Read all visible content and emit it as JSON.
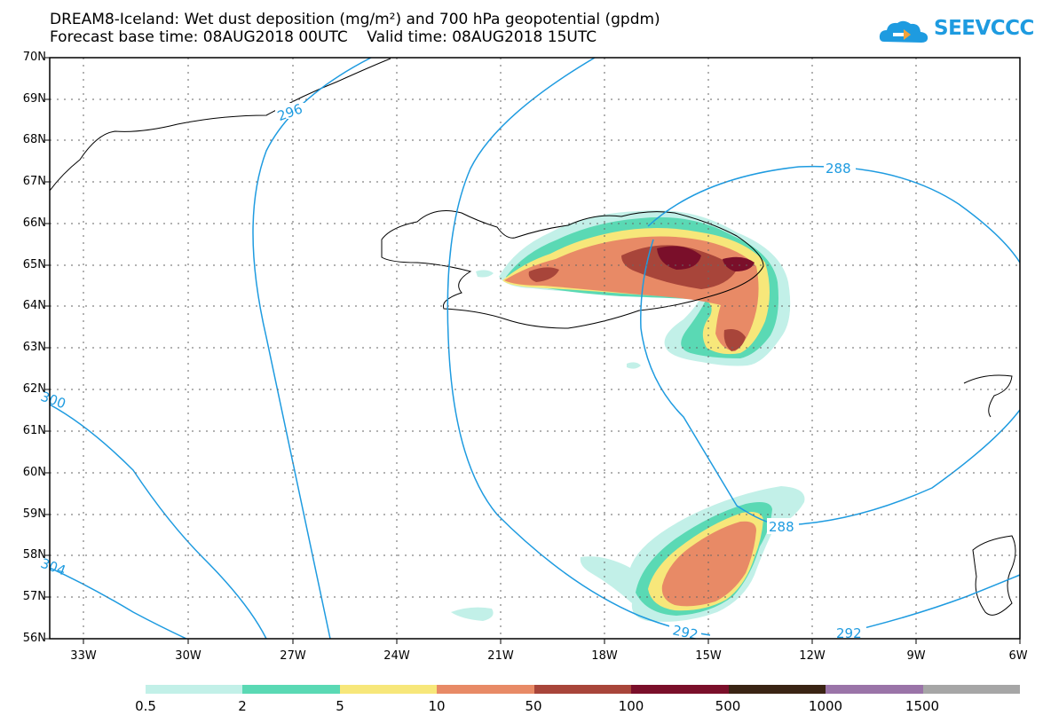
{
  "title": {
    "line1": "DREAM8-Iceland: Wet dust deposition (mg/m²) and 700 hPa geopotential (gpdm)",
    "line2": "Forecast base time: 08AUG2018 00UTC    Valid time: 08AUG2018 15UTC"
  },
  "logo": {
    "text": "SEEVCCC",
    "icon": "cloud-icon",
    "color": "#1e9be0"
  },
  "axes": {
    "lat_labels": [
      "70N",
      "69N",
      "68N",
      "67N",
      "66N",
      "65N",
      "64N",
      "63N",
      "62N",
      "61N",
      "60N",
      "59N",
      "58N",
      "57N",
      "56N"
    ],
    "lon_labels": [
      "33W",
      "30W",
      "27W",
      "24W",
      "21W",
      "18W",
      "15W",
      "12W",
      "9W",
      "6W"
    ]
  },
  "contours": {
    "color": "#1e9be0",
    "labels": [
      "296",
      "288",
      "288",
      "292",
      "292",
      "300",
      "304"
    ]
  },
  "colorbar": {
    "labels": [
      "0.5",
      "2",
      "5",
      "10",
      "50",
      "100",
      "500",
      "1000",
      "1500"
    ],
    "colors": [
      "#c2f0e8",
      "#5ad9b4",
      "#f7e77a",
      "#e88a66",
      "#a8453a",
      "#7a0f2a",
      "#3a2414",
      "#9a74a8",
      "#a6a6a6"
    ]
  },
  "fill_colors": {
    "c1": "#c2f0e8",
    "c2": "#5ad9b4",
    "c3": "#f7e77a",
    "c4": "#e88a66",
    "c5": "#a8453a",
    "c6": "#7a0f2a"
  }
}
